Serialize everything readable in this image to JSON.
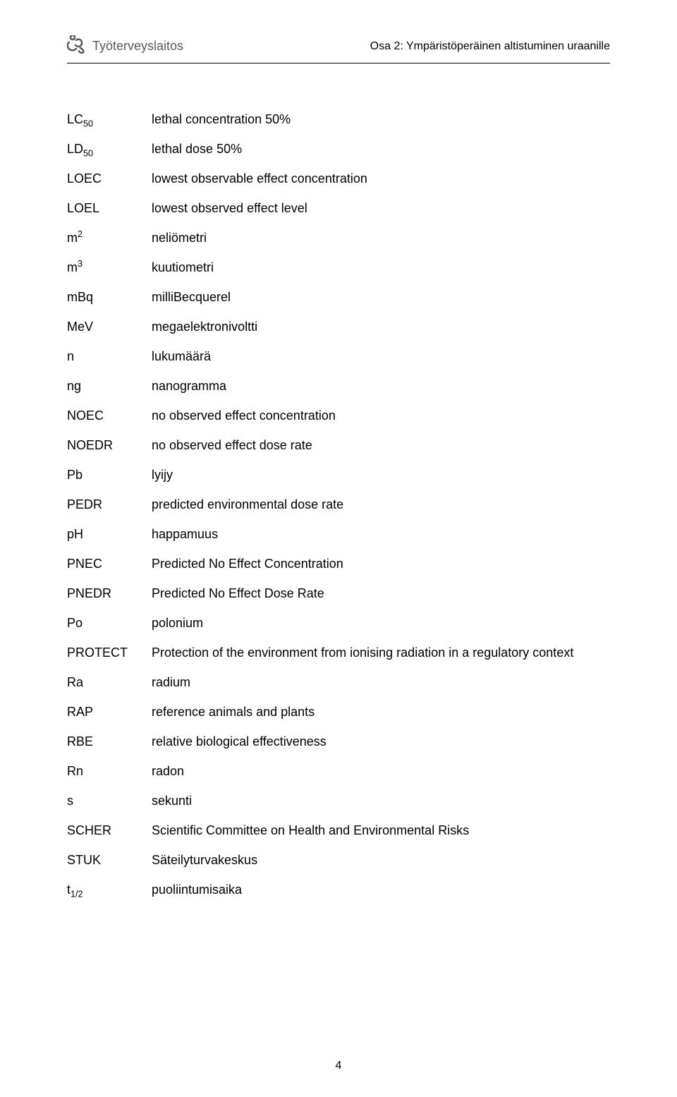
{
  "header": {
    "org": "Työterveyslaitos",
    "section": "Osa 2: Ympäristöperäinen altistuminen uraanille"
  },
  "definitions": [
    {
      "termHtml": "LC<span class='sub'>50</span>",
      "desc": "lethal concentration 50%"
    },
    {
      "termHtml": "LD<span class='sub'>50</span>",
      "desc": "lethal dose 50%"
    },
    {
      "termHtml": "LOEC",
      "desc": "lowest observable effect concentration"
    },
    {
      "termHtml": "LOEL",
      "desc": "lowest observed effect level"
    },
    {
      "termHtml": "m<span class='sup'>2</span>",
      "desc": "neliömetri"
    },
    {
      "termHtml": "m<span class='sup'>3</span>",
      "desc": "kuutiometri"
    },
    {
      "termHtml": "mBq",
      "desc": "milliBecquerel"
    },
    {
      "termHtml": "MeV",
      "desc": "megaelektronivoltti"
    },
    {
      "termHtml": "n",
      "desc": "lukumäärä"
    },
    {
      "termHtml": "ng",
      "desc": "nanogramma"
    },
    {
      "termHtml": "NOEC",
      "desc": "no observed effect concentration"
    },
    {
      "termHtml": "NOEDR",
      "desc": "no observed effect dose rate"
    },
    {
      "termHtml": "Pb",
      "desc": "lyijy"
    },
    {
      "termHtml": "PEDR",
      "desc": "predicted environmental dose rate"
    },
    {
      "termHtml": "pH",
      "desc": "happamuus"
    },
    {
      "termHtml": "PNEC",
      "desc": "Predicted No Effect Concentration"
    },
    {
      "termHtml": "PNEDR",
      "desc": "Predicted No Effect Dose Rate"
    },
    {
      "termHtml": "Po",
      "desc": "polonium"
    },
    {
      "termHtml": "PROTECT",
      "desc": "Protection of the environment from ionising radiation in a regulatory context"
    },
    {
      "termHtml": "Ra",
      "desc": "radium"
    },
    {
      "termHtml": "RAP",
      "desc": "reference animals and plants"
    },
    {
      "termHtml": "RBE",
      "desc": "relative biological effectiveness"
    },
    {
      "termHtml": "Rn",
      "desc": "radon"
    },
    {
      "termHtml": "s",
      "desc": "sekunti"
    },
    {
      "termHtml": "SCHER",
      "desc": "Scientific Committee on Health and Environmental Risks"
    },
    {
      "termHtml": "STUK",
      "desc": "Säteilyturvakeskus"
    },
    {
      "termHtml": "t<span class='sub'>1/2</span>",
      "desc": "puoliintumisaika"
    }
  ],
  "pageNumber": "4",
  "style": {
    "bodyFontSize": 18,
    "headerFontSize": 16,
    "textColor": "#000000",
    "logoColor": "#5a5a5a",
    "termColumnWidth": 120,
    "rowGap": 24
  }
}
